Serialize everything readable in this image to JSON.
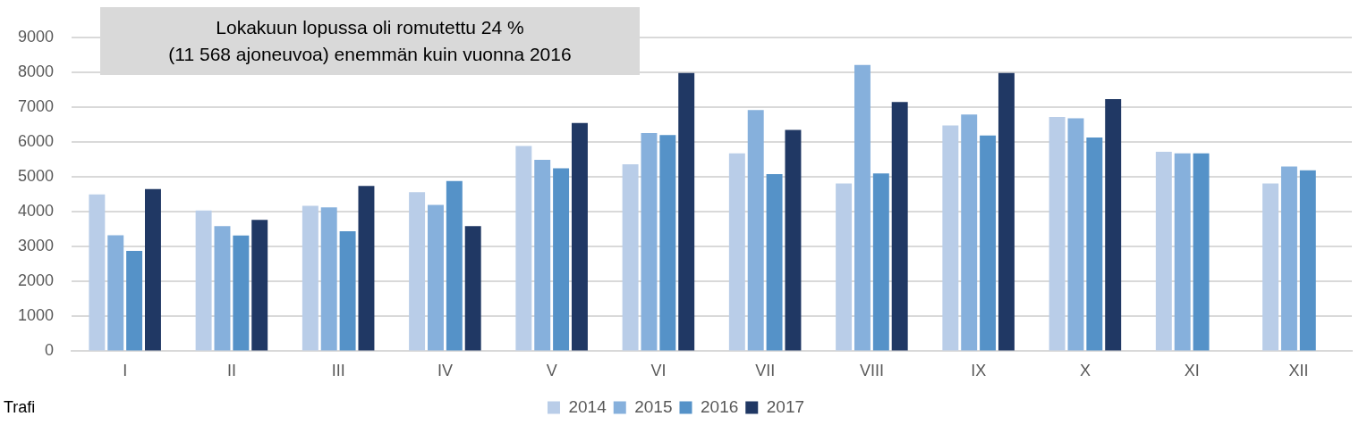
{
  "chart_data": {
    "type": "bar",
    "categories": [
      "I",
      "II",
      "III",
      "IV",
      "V",
      "VI",
      "VII",
      "VIII",
      "IX",
      "X",
      "XI",
      "XII"
    ],
    "series": [
      {
        "name": "2014",
        "color": "#b9cde8",
        "values": [
          4500,
          4040,
          4170,
          4560,
          5890,
          5360,
          5680,
          4810,
          6480,
          6720,
          5720,
          4810
        ]
      },
      {
        "name": "2015",
        "color": "#86b0dc",
        "values": [
          3330,
          3590,
          4130,
          4200,
          5490,
          6260,
          6920,
          8210,
          6790,
          6680,
          5680,
          5300
        ]
      },
      {
        "name": "2016",
        "color": "#5592c8",
        "values": [
          2880,
          3320,
          3440,
          4880,
          5250,
          6200,
          5080,
          5100,
          6190,
          6130,
          5680,
          5190
        ]
      },
      {
        "name": "2017",
        "color": "#203864",
        "values": [
          4650,
          3770,
          4740,
          3590,
          6550,
          7980,
          6350,
          7150,
          7980,
          7230,
          null,
          null
        ]
      }
    ],
    "ylim": [
      0,
      9000
    ],
    "yticks": [
      0,
      1000,
      2000,
      3000,
      4000,
      5000,
      6000,
      7000,
      8000,
      9000
    ],
    "grid": "y",
    "legend": "bottom",
    "annotations": [
      "Lokakuun lopussa oli romutettu 24 %\n(11 568 ajoneuvoa) enemmän kuin vuonna 2016",
      "Trafi"
    ]
  }
}
